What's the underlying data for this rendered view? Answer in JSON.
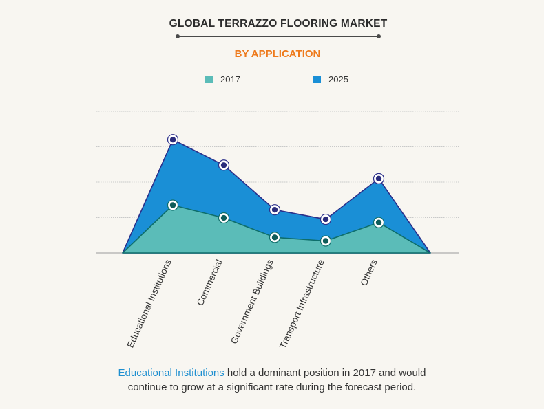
{
  "title": "GLOBAL TERRAZZO FLOORING  MARKET",
  "subtitle": "BY APPLICATION",
  "legend": [
    {
      "label": "2017",
      "color": "#5bbcb8"
    },
    {
      "label": "2025",
      "color": "#1a8fd6"
    }
  ],
  "caption": {
    "highlight": "Educational Institutions",
    "line1_rest": " hold a dominant position in 2017 and would",
    "line2": "continue to grow at a significant rate during the forecast period."
  },
  "chart_data": {
    "type": "area",
    "title": "GLOBAL TERRAZZO FLOORING  MARKET",
    "subtitle": "BY APPLICATION",
    "categories": [
      "Educational Institutions",
      "Commercial",
      "Government Buildings",
      "Transport Infrastructure",
      "Others"
    ],
    "series": [
      {
        "name": "2017",
        "values": [
          1.35,
          0.99,
          0.44,
          0.34,
          0.86
        ],
        "color": "#5bbcb8"
      },
      {
        "name": "2025",
        "values": [
          3.2,
          2.48,
          1.22,
          0.95,
          2.1
        ],
        "color": "#1a8fd6"
      }
    ],
    "ylim": [
      0,
      4
    ],
    "grid": true,
    "legend_position": "top"
  }
}
